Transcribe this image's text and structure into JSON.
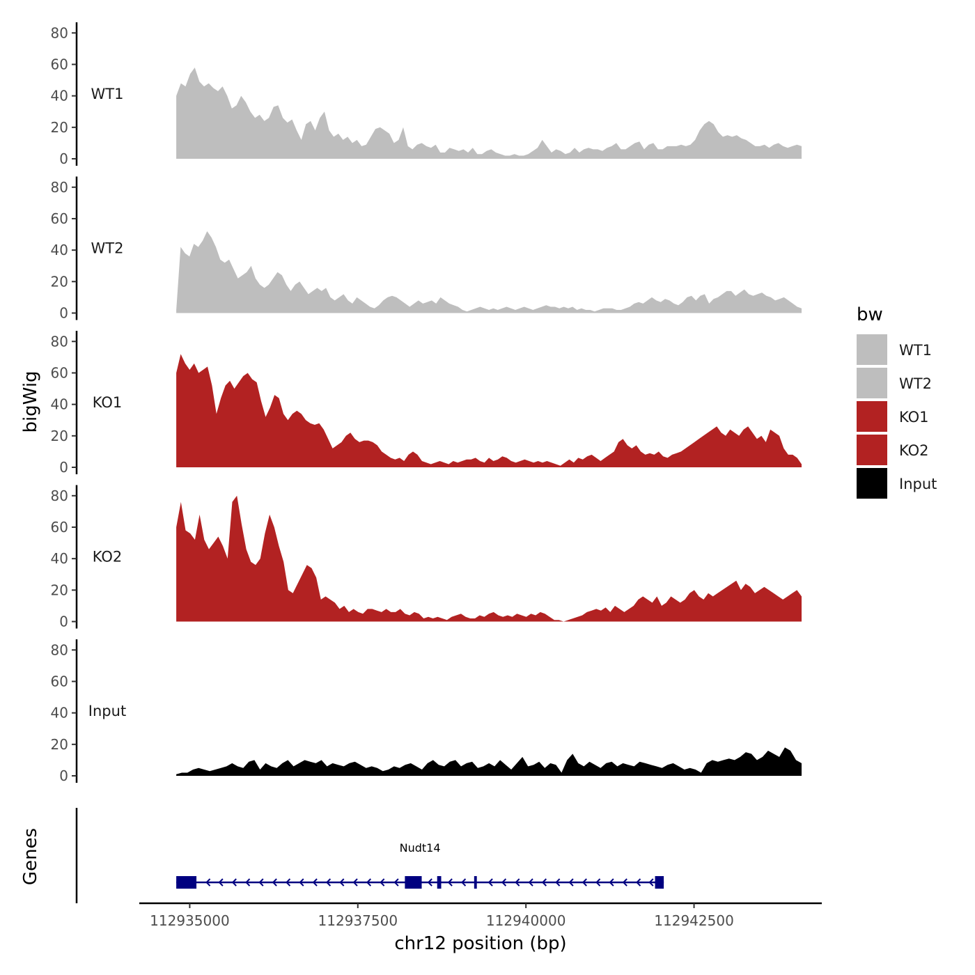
{
  "chart_data": {
    "type": "area",
    "y_axis_title": "bigWig",
    "x_axis_title": "chr12 position (bp)",
    "gene_track_title": "Genes",
    "xlim": [
      112934250,
      112944400
    ],
    "ylim": [
      0,
      85
    ],
    "y_ticks": [
      0,
      20,
      40,
      60,
      80
    ],
    "y_tick_labels": [
      "0",
      "20",
      "40",
      "60",
      "80"
    ],
    "x_ticks": [
      112935000,
      112937500,
      112940000,
      112942500
    ],
    "x_tick_labels": [
      "112935000",
      "112937500",
      "112940000",
      "112942500"
    ],
    "data_x_range": [
      112934800,
      112944100
    ],
    "legend": {
      "title": "bw",
      "position": "right",
      "entries": [
        {
          "label": "WT1",
          "color": "#bebebe"
        },
        {
          "label": "WT2",
          "color": "#bebebe"
        },
        {
          "label": "KO1",
          "color": "#b22222"
        },
        {
          "label": "KO2",
          "color": "#b22222"
        },
        {
          "label": "Input",
          "color": "#000000"
        }
      ]
    },
    "series": [
      {
        "name": "WT1",
        "label": "WT1",
        "color": "#bebebe",
        "values": [
          40,
          48,
          46,
          54,
          58,
          49,
          46,
          48,
          45,
          43,
          46,
          40,
          32,
          34,
          40,
          36,
          30,
          26,
          28,
          24,
          26,
          33,
          34,
          26,
          23,
          25,
          18,
          12,
          22,
          24,
          18,
          26,
          30,
          18,
          14,
          16,
          12,
          14,
          10,
          12,
          8,
          9,
          14,
          19,
          20,
          18,
          16,
          10,
          12,
          20,
          8,
          6,
          9,
          10,
          8,
          7,
          9,
          4,
          4,
          7,
          6,
          5,
          6,
          4,
          7,
          3,
          3,
          5,
          6,
          4,
          3,
          2,
          2,
          3,
          2,
          2,
          3,
          5,
          7,
          12,
          8,
          4,
          6,
          5,
          3,
          4,
          7,
          4,
          6,
          7,
          6,
          6,
          5,
          7,
          8,
          10,
          6,
          6,
          8,
          10,
          11,
          6,
          9,
          10,
          6,
          6,
          8,
          8,
          8,
          9,
          8,
          9,
          12,
          18,
          22,
          24,
          22,
          17,
          14,
          15,
          14,
          15,
          13,
          12,
          10,
          8,
          8,
          9,
          7,
          9,
          10,
          8,
          7,
          8,
          9,
          8
        ]
      },
      {
        "name": "WT2",
        "label": "WT2",
        "color": "#bebebe",
        "values": [
          2,
          42,
          38,
          36,
          44,
          42,
          46,
          52,
          48,
          42,
          34,
          32,
          34,
          28,
          22,
          24,
          26,
          30,
          22,
          18,
          16,
          18,
          22,
          26,
          24,
          18,
          14,
          18,
          20,
          16,
          12,
          14,
          16,
          14,
          16,
          10,
          8,
          10,
          12,
          8,
          6,
          10,
          8,
          6,
          4,
          3,
          5,
          8,
          10,
          11,
          10,
          8,
          6,
          4,
          6,
          8,
          6,
          7,
          8,
          6,
          10,
          8,
          6,
          5,
          4,
          2,
          1,
          2,
          3,
          4,
          3,
          2,
          3,
          2,
          3,
          4,
          3,
          2,
          3,
          4,
          3,
          2,
          3,
          4,
          5,
          4,
          4,
          3,
          4,
          3,
          4,
          2,
          3,
          2,
          2,
          1,
          2,
          3,
          3,
          3,
          2,
          2,
          3,
          4,
          6,
          7,
          6,
          8,
          10,
          8,
          7,
          9,
          8,
          6,
          5,
          7,
          10,
          11,
          8,
          11,
          12,
          6,
          9,
          10,
          12,
          14,
          14,
          11,
          13,
          15,
          12,
          11,
          12,
          13,
          11,
          10,
          8,
          9,
          10,
          8,
          6,
          4,
          3
        ]
      },
      {
        "name": "KO1",
        "label": "KO1",
        "color": "#b22222",
        "values": [
          60,
          72,
          66,
          62,
          66,
          60,
          62,
          64,
          52,
          34,
          44,
          52,
          55,
          50,
          54,
          58,
          60,
          56,
          54,
          42,
          32,
          38,
          46,
          44,
          34,
          30,
          34,
          36,
          34,
          30,
          28,
          27,
          28,
          24,
          18,
          12,
          14,
          16,
          20,
          22,
          18,
          16,
          17,
          17,
          16,
          14,
          10,
          8,
          6,
          5,
          6,
          4,
          8,
          10,
          8,
          4,
          3,
          2,
          3,
          4,
          3,
          2,
          4,
          3,
          4,
          5,
          5,
          6,
          4,
          3,
          6,
          4,
          5,
          7,
          6,
          4,
          3,
          4,
          5,
          4,
          3,
          4,
          3,
          4,
          3,
          2,
          1,
          3,
          5,
          3,
          6,
          5,
          7,
          8,
          6,
          4,
          6,
          8,
          10,
          16,
          18,
          14,
          12,
          14,
          10,
          8,
          9,
          8,
          10,
          7,
          6,
          8,
          9,
          10,
          12,
          14,
          16,
          18,
          20,
          22,
          24,
          26,
          22,
          20,
          24,
          22,
          20,
          24,
          26,
          22,
          18,
          20,
          16,
          24,
          22,
          20,
          12,
          8,
          8,
          6,
          2
        ]
      },
      {
        "name": "KO2",
        "label": "KO2",
        "color": "#b22222",
        "values": [
          60,
          76,
          58,
          56,
          52,
          68,
          52,
          46,
          50,
          54,
          48,
          40,
          76,
          80,
          62,
          46,
          38,
          36,
          40,
          56,
          68,
          60,
          48,
          38,
          20,
          18,
          24,
          30,
          36,
          34,
          28,
          14,
          16,
          14,
          12,
          8,
          10,
          6,
          8,
          6,
          5,
          8,
          8,
          7,
          6,
          8,
          6,
          6,
          8,
          5,
          4,
          6,
          5,
          2,
          3,
          2,
          3,
          2,
          1,
          3,
          4,
          5,
          3,
          2,
          2,
          4,
          3,
          5,
          6,
          4,
          3,
          4,
          3,
          5,
          4,
          3,
          5,
          4,
          6,
          5,
          3,
          1,
          1,
          0,
          1,
          2,
          3,
          4,
          6,
          7,
          8,
          7,
          9,
          6,
          10,
          8,
          6,
          8,
          10,
          14,
          16,
          14,
          12,
          16,
          10,
          12,
          16,
          14,
          12,
          14,
          18,
          20,
          16,
          14,
          18,
          16,
          18,
          20,
          22,
          24,
          26,
          20,
          24,
          22,
          18,
          20,
          22,
          20,
          18,
          16,
          14,
          16,
          18,
          20,
          16
        ]
      },
      {
        "name": "Input",
        "label": "Input",
        "color": "#000000",
        "values": [
          1,
          2,
          2,
          4,
          5,
          4,
          3,
          4,
          5,
          6,
          8,
          6,
          5,
          9,
          10,
          4,
          8,
          6,
          5,
          8,
          10,
          6,
          8,
          10,
          9,
          8,
          10,
          6,
          8,
          7,
          6,
          8,
          9,
          7,
          5,
          6,
          5,
          3,
          4,
          6,
          5,
          7,
          8,
          6,
          4,
          8,
          10,
          7,
          6,
          9,
          10,
          6,
          8,
          9,
          5,
          6,
          8,
          6,
          10,
          7,
          4,
          8,
          12,
          6,
          7,
          9,
          5,
          8,
          7,
          2,
          10,
          14,
          8,
          6,
          9,
          7,
          5,
          8,
          9,
          6,
          8,
          7,
          6,
          9,
          8,
          7,
          6,
          5,
          7,
          8,
          6,
          4,
          5,
          4,
          2,
          8,
          10,
          9,
          10,
          11,
          10,
          12,
          15,
          14,
          10,
          12,
          16,
          14,
          12,
          18,
          16,
          10,
          8
        ]
      }
    ],
    "genes": [
      {
        "name": "Nudt14",
        "strand": "-",
        "start": 112934800,
        "end": 112942050,
        "color": "#000080",
        "exons": [
          [
            112934800,
            112935100
          ],
          [
            112938200,
            112938450
          ],
          [
            112938680,
            112938740
          ],
          [
            112939230,
            112939270
          ],
          [
            112941920,
            112942050
          ]
        ],
        "arrows": [
          112935250,
          112935440,
          112935640,
          112935840,
          112936040,
          112936240,
          112936440,
          112936640,
          112936840,
          112937040,
          112937240,
          112937440,
          112937640,
          112937840,
          112938050,
          112938550,
          112938850,
          112939050,
          112939450,
          112939650,
          112939850,
          112940050,
          112940250,
          112940450,
          112940650,
          112940850,
          112941050,
          112941250,
          112941450,
          112941650,
          112941840
        ]
      }
    ]
  }
}
